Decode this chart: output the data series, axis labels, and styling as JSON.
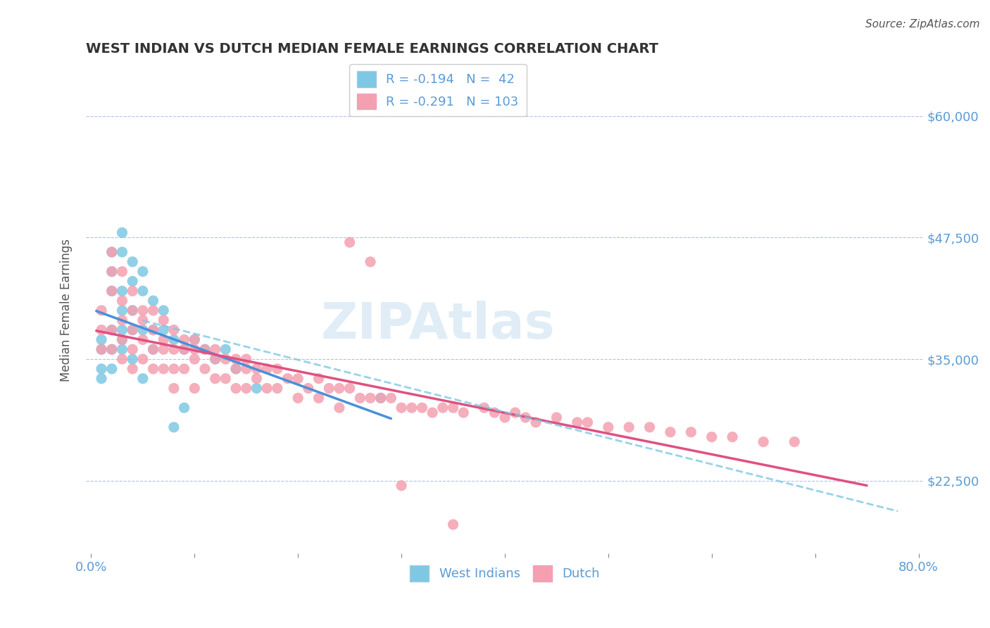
{
  "title": "WEST INDIAN VS DUTCH MEDIAN FEMALE EARNINGS CORRELATION CHART",
  "source": "Source: ZipAtlas.com",
  "xlabel": "",
  "ylabel": "Median Female Earnings",
  "xlim": [
    0.0,
    0.8
  ],
  "ylim": [
    15000,
    65000
  ],
  "xticks": [
    0.0,
    0.1,
    0.2,
    0.3,
    0.4,
    0.5,
    0.6,
    0.7,
    0.8
  ],
  "xticklabels": [
    "0.0%",
    "",
    "",
    "",
    "",
    "",
    "",
    "",
    "80.0%"
  ],
  "yticks": [
    22500,
    35000,
    47500,
    60000
  ],
  "yticklabels": [
    "$22,500",
    "$35,000",
    "$47,500",
    "$60,000"
  ],
  "west_indian_color": "#7ec8e3",
  "dutch_color": "#f4a0b0",
  "trend_blue_color": "#4a90d9",
  "trend_pink_color": "#e05080",
  "trend_dash_color": "#7ec8e3",
  "R_west_indian": -0.194,
  "N_west_indian": 42,
  "R_dutch": -0.291,
  "N_dutch": 103,
  "title_color": "#333333",
  "axis_color": "#5b9bd5",
  "watermark": "ZIPAtlas",
  "west_indian_points_x": [
    0.01,
    0.01,
    0.01,
    0.01,
    0.02,
    0.02,
    0.02,
    0.02,
    0.02,
    0.02,
    0.03,
    0.03,
    0.03,
    0.03,
    0.03,
    0.03,
    0.03,
    0.04,
    0.04,
    0.04,
    0.04,
    0.04,
    0.05,
    0.05,
    0.05,
    0.05,
    0.06,
    0.06,
    0.06,
    0.07,
    0.07,
    0.08,
    0.08,
    0.09,
    0.09,
    0.1,
    0.11,
    0.12,
    0.13,
    0.14,
    0.16,
    0.28
  ],
  "west_indian_points_y": [
    33000,
    34000,
    37000,
    36000,
    44000,
    46000,
    42000,
    38000,
    36000,
    34000,
    48000,
    46000,
    42000,
    40000,
    38000,
    37000,
    36000,
    45000,
    43000,
    40000,
    38000,
    35000,
    44000,
    42000,
    38000,
    33000,
    41000,
    38000,
    36000,
    40000,
    38000,
    37000,
    28000,
    36000,
    30000,
    37000,
    36000,
    35000,
    36000,
    34000,
    32000,
    31000
  ],
  "dutch_points_x": [
    0.01,
    0.01,
    0.01,
    0.02,
    0.02,
    0.02,
    0.02,
    0.02,
    0.03,
    0.03,
    0.03,
    0.03,
    0.03,
    0.04,
    0.04,
    0.04,
    0.04,
    0.04,
    0.05,
    0.05,
    0.05,
    0.05,
    0.06,
    0.06,
    0.06,
    0.06,
    0.07,
    0.07,
    0.07,
    0.07,
    0.08,
    0.08,
    0.08,
    0.08,
    0.09,
    0.09,
    0.09,
    0.1,
    0.1,
    0.1,
    0.1,
    0.11,
    0.11,
    0.12,
    0.12,
    0.12,
    0.13,
    0.13,
    0.14,
    0.14,
    0.14,
    0.15,
    0.15,
    0.15,
    0.16,
    0.16,
    0.17,
    0.17,
    0.18,
    0.18,
    0.19,
    0.2,
    0.2,
    0.21,
    0.22,
    0.22,
    0.23,
    0.24,
    0.24,
    0.25,
    0.26,
    0.27,
    0.28,
    0.29,
    0.3,
    0.31,
    0.32,
    0.33,
    0.34,
    0.35,
    0.36,
    0.38,
    0.39,
    0.4,
    0.41,
    0.42,
    0.43,
    0.45,
    0.47,
    0.48,
    0.5,
    0.52,
    0.54,
    0.56,
    0.58,
    0.6,
    0.62,
    0.65,
    0.68,
    0.25,
    0.27,
    0.3,
    0.35
  ],
  "dutch_points_y": [
    38000,
    40000,
    36000,
    46000,
    44000,
    42000,
    38000,
    36000,
    44000,
    41000,
    39000,
    37000,
    35000,
    42000,
    40000,
    38000,
    36000,
    34000,
    40000,
    39000,
    37000,
    35000,
    40000,
    38000,
    36000,
    34000,
    39000,
    37000,
    36000,
    34000,
    38000,
    36000,
    34000,
    32000,
    37000,
    36000,
    34000,
    37000,
    36000,
    35000,
    32000,
    36000,
    34000,
    36000,
    35000,
    33000,
    35000,
    33000,
    35000,
    34000,
    32000,
    35000,
    34000,
    32000,
    34000,
    33000,
    34000,
    32000,
    34000,
    32000,
    33000,
    33000,
    31000,
    32000,
    33000,
    31000,
    32000,
    32000,
    30000,
    32000,
    31000,
    31000,
    31000,
    31000,
    30000,
    30000,
    30000,
    29500,
    30000,
    30000,
    29500,
    30000,
    29500,
    29000,
    29500,
    29000,
    28500,
    29000,
    28500,
    28500,
    28000,
    28000,
    28000,
    27500,
    27500,
    27000,
    27000,
    26500,
    26500,
    47000,
    45000,
    22000,
    18000
  ]
}
